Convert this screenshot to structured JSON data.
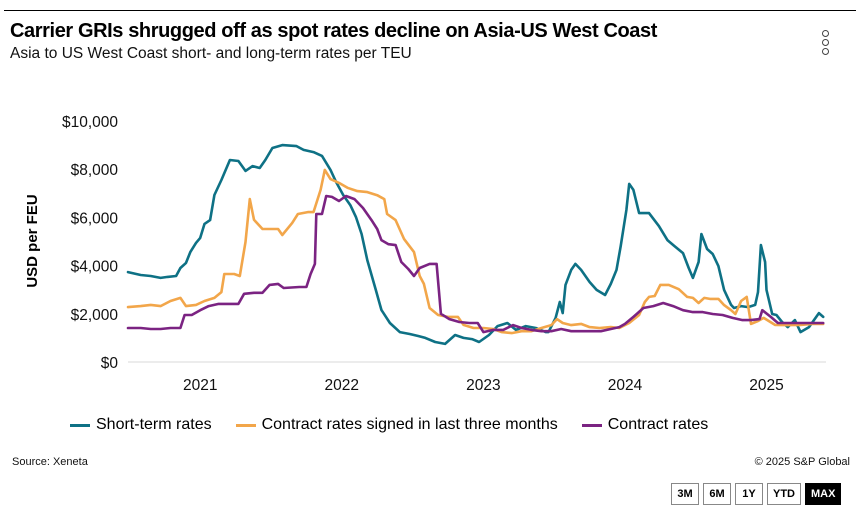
{
  "header": {
    "title": "Carrier GRIs shrugged off as spot rates decline on Asia-US West Coast",
    "subtitle": "Asia to US West Coast short- and long-term rates per TEU",
    "menu_icon": "vertical-ellipsis-icon"
  },
  "footer": {
    "source": "Source: Xeneta",
    "copyright": "© 2025 S&P Global",
    "range_buttons": [
      {
        "label": "3M",
        "active": false
      },
      {
        "label": "6M",
        "active": false
      },
      {
        "label": "1Y",
        "active": false
      },
      {
        "label": "YTD",
        "active": false
      },
      {
        "label": "MAX",
        "active": true
      }
    ]
  },
  "colors": {
    "short_term": "#0e7185",
    "contract_3m": "#f2a64a",
    "contract": "#7b2382",
    "grid": "#d9d9d9"
  },
  "chart_data": {
    "type": "line",
    "title": "Carrier GRIs shrugged off as spot rates decline on Asia-US West Coast",
    "subtitle": "Asia to US West Coast short- and long-term rates per TEU",
    "xlabel": "",
    "ylabel": "USD per FEU",
    "xlim": [
      2020.49,
      2025.42
    ],
    "ylim": [
      0,
      10000
    ],
    "x_ticks": [
      2021,
      2022,
      2023,
      2024,
      2025
    ],
    "x_tick_labels": [
      "2021",
      "2022",
      "2023",
      "2024",
      "2025"
    ],
    "y_ticks": [
      0,
      2000,
      4000,
      6000,
      8000,
      10000
    ],
    "y_tick_labels": [
      "$0",
      "$2,000",
      "$4,000",
      "$6,000",
      "$8,000",
      "$10,000"
    ],
    "grid": "baseline only",
    "legend_position": "bottom",
    "series": [
      {
        "name": "Short-term rates",
        "color_key": "short_term",
        "points": [
          [
            2020.49,
            3730
          ],
          [
            2020.58,
            3610
          ],
          [
            2020.65,
            3570
          ],
          [
            2020.72,
            3490
          ],
          [
            2020.77,
            3530
          ],
          [
            2020.83,
            3570
          ],
          [
            2020.86,
            3900
          ],
          [
            2020.9,
            4110
          ],
          [
            2020.93,
            4560
          ],
          [
            2020.97,
            4940
          ],
          [
            2021.0,
            5150
          ],
          [
            2021.03,
            5730
          ],
          [
            2021.07,
            5890
          ],
          [
            2021.1,
            6930
          ],
          [
            2021.15,
            7550
          ],
          [
            2021.21,
            8380
          ],
          [
            2021.27,
            8340
          ],
          [
            2021.32,
            7930
          ],
          [
            2021.37,
            8130
          ],
          [
            2021.42,
            8050
          ],
          [
            2021.46,
            8380
          ],
          [
            2021.51,
            8880
          ],
          [
            2021.58,
            9000
          ],
          [
            2021.68,
            8960
          ],
          [
            2021.73,
            8800
          ],
          [
            2021.8,
            8710
          ],
          [
            2021.86,
            8550
          ],
          [
            2021.92,
            7970
          ],
          [
            2021.96,
            7470
          ],
          [
            2022.01,
            6930
          ],
          [
            2022.06,
            6510
          ],
          [
            2022.1,
            6020
          ],
          [
            2022.14,
            5310
          ],
          [
            2022.18,
            4230
          ],
          [
            2022.24,
            2990
          ],
          [
            2022.28,
            2160
          ],
          [
            2022.34,
            1620
          ],
          [
            2022.41,
            1240
          ],
          [
            2022.48,
            1160
          ],
          [
            2022.54,
            1080
          ],
          [
            2022.59,
            1000
          ],
          [
            2022.66,
            830
          ],
          [
            2022.73,
            750
          ],
          [
            2022.8,
            1120
          ],
          [
            2022.86,
            1000
          ],
          [
            2022.92,
            950
          ],
          [
            2022.97,
            830
          ],
          [
            2023.04,
            1120
          ],
          [
            2023.1,
            1490
          ],
          [
            2023.17,
            1620
          ],
          [
            2023.23,
            1330
          ],
          [
            2023.3,
            1490
          ],
          [
            2023.37,
            1410
          ],
          [
            2023.44,
            1240
          ],
          [
            2023.46,
            1240
          ],
          [
            2023.51,
            1830
          ],
          [
            2023.54,
            2490
          ],
          [
            2023.56,
            2030
          ],
          [
            2023.58,
            3200
          ],
          [
            2023.62,
            3820
          ],
          [
            2023.65,
            4070
          ],
          [
            2023.69,
            3820
          ],
          [
            2023.75,
            3320
          ],
          [
            2023.8,
            2990
          ],
          [
            2023.86,
            2780
          ],
          [
            2023.9,
            3240
          ],
          [
            2023.94,
            3820
          ],
          [
            2023.97,
            4810
          ],
          [
            2024.01,
            6310
          ],
          [
            2024.03,
            7390
          ],
          [
            2024.06,
            7140
          ],
          [
            2024.1,
            6180
          ],
          [
            2024.17,
            6180
          ],
          [
            2024.24,
            5640
          ],
          [
            2024.3,
            5060
          ],
          [
            2024.35,
            4810
          ],
          [
            2024.41,
            4520
          ],
          [
            2024.45,
            3900
          ],
          [
            2024.48,
            3490
          ],
          [
            2024.52,
            4150
          ],
          [
            2024.54,
            5310
          ],
          [
            2024.58,
            4690
          ],
          [
            2024.62,
            4480
          ],
          [
            2024.66,
            3980
          ],
          [
            2024.7,
            2990
          ],
          [
            2024.75,
            2370
          ],
          [
            2024.77,
            2240
          ],
          [
            2024.82,
            2320
          ],
          [
            2024.87,
            2280
          ],
          [
            2024.92,
            2370
          ],
          [
            2024.94,
            2900
          ],
          [
            2024.96,
            4850
          ],
          [
            2024.99,
            4150
          ],
          [
            2025.0,
            2990
          ],
          [
            2025.04,
            1990
          ],
          [
            2025.07,
            1950
          ],
          [
            2025.11,
            1660
          ],
          [
            2025.15,
            1450
          ],
          [
            2025.2,
            1740
          ],
          [
            2025.24,
            1240
          ],
          [
            2025.3,
            1450
          ],
          [
            2025.37,
            2030
          ],
          [
            2025.4,
            1870
          ]
        ]
      },
      {
        "name": "Contract rates signed in last three months",
        "color_key": "contract_3m",
        "points": [
          [
            2020.49,
            2280
          ],
          [
            2020.58,
            2320
          ],
          [
            2020.65,
            2370
          ],
          [
            2020.72,
            2320
          ],
          [
            2020.79,
            2530
          ],
          [
            2020.86,
            2660
          ],
          [
            2020.9,
            2320
          ],
          [
            2020.97,
            2370
          ],
          [
            2021.03,
            2530
          ],
          [
            2021.1,
            2660
          ],
          [
            2021.15,
            2900
          ],
          [
            2021.17,
            3650
          ],
          [
            2021.24,
            3650
          ],
          [
            2021.28,
            3570
          ],
          [
            2021.32,
            4980
          ],
          [
            2021.35,
            6760
          ],
          [
            2021.38,
            5900
          ],
          [
            2021.44,
            5520
          ],
          [
            2021.51,
            5520
          ],
          [
            2021.55,
            5520
          ],
          [
            2021.58,
            5270
          ],
          [
            2021.65,
            5770
          ],
          [
            2021.69,
            6140
          ],
          [
            2021.76,
            6220
          ],
          [
            2021.8,
            6220
          ],
          [
            2021.85,
            7140
          ],
          [
            2021.88,
            7970
          ],
          [
            2021.92,
            7590
          ],
          [
            2021.98,
            7430
          ],
          [
            2022.04,
            7230
          ],
          [
            2022.11,
            7090
          ],
          [
            2022.18,
            7050
          ],
          [
            2022.25,
            6920
          ],
          [
            2022.3,
            6760
          ],
          [
            2022.32,
            6140
          ],
          [
            2022.38,
            5890
          ],
          [
            2022.44,
            5100
          ],
          [
            2022.51,
            4560
          ],
          [
            2022.55,
            3570
          ],
          [
            2022.58,
            3240
          ],
          [
            2022.62,
            2240
          ],
          [
            2022.68,
            1950
          ],
          [
            2022.75,
            1870
          ],
          [
            2022.82,
            1870
          ],
          [
            2022.86,
            1540
          ],
          [
            2022.93,
            1410
          ],
          [
            2023.0,
            1410
          ],
          [
            2023.07,
            1370
          ],
          [
            2023.13,
            1240
          ],
          [
            2023.2,
            1200
          ],
          [
            2023.27,
            1280
          ],
          [
            2023.34,
            1280
          ],
          [
            2023.41,
            1410
          ],
          [
            2023.48,
            1530
          ],
          [
            2023.52,
            1780
          ],
          [
            2023.56,
            1620
          ],
          [
            2023.62,
            1530
          ],
          [
            2023.69,
            1580
          ],
          [
            2023.75,
            1450
          ],
          [
            2023.82,
            1410
          ],
          [
            2023.9,
            1450
          ],
          [
            2023.96,
            1410
          ],
          [
            2024.03,
            1620
          ],
          [
            2024.1,
            1950
          ],
          [
            2024.14,
            2490
          ],
          [
            2024.17,
            2700
          ],
          [
            2024.21,
            2740
          ],
          [
            2024.25,
            3200
          ],
          [
            2024.31,
            3200
          ],
          [
            2024.38,
            3020
          ],
          [
            2024.44,
            2700
          ],
          [
            2024.48,
            2660
          ],
          [
            2024.52,
            2450
          ],
          [
            2024.56,
            2660
          ],
          [
            2024.6,
            2620
          ],
          [
            2024.66,
            2620
          ],
          [
            2024.7,
            2360
          ],
          [
            2024.75,
            2150
          ],
          [
            2024.78,
            1990
          ],
          [
            2024.82,
            2530
          ],
          [
            2024.86,
            2700
          ],
          [
            2024.89,
            1580
          ],
          [
            2024.94,
            1700
          ],
          [
            2024.98,
            1830
          ],
          [
            2025.06,
            1540
          ],
          [
            2025.14,
            1530
          ],
          [
            2025.24,
            1540
          ],
          [
            2025.32,
            1580
          ],
          [
            2025.4,
            1580
          ]
        ]
      },
      {
        "name": "Contract rates",
        "color_key": "contract",
        "points": [
          [
            2020.49,
            1410
          ],
          [
            2020.58,
            1410
          ],
          [
            2020.65,
            1370
          ],
          [
            2020.72,
            1370
          ],
          [
            2020.79,
            1410
          ],
          [
            2020.86,
            1410
          ],
          [
            2020.89,
            1950
          ],
          [
            2020.94,
            1950
          ],
          [
            2021.0,
            2150
          ],
          [
            2021.06,
            2320
          ],
          [
            2021.13,
            2410
          ],
          [
            2021.2,
            2410
          ],
          [
            2021.27,
            2410
          ],
          [
            2021.31,
            2830
          ],
          [
            2021.38,
            2870
          ],
          [
            2021.44,
            2870
          ],
          [
            2021.49,
            3200
          ],
          [
            2021.55,
            3240
          ],
          [
            2021.59,
            3070
          ],
          [
            2021.7,
            3110
          ],
          [
            2021.75,
            3110
          ],
          [
            2021.78,
            3650
          ],
          [
            2021.81,
            4070
          ],
          [
            2021.82,
            6140
          ],
          [
            2021.86,
            6140
          ],
          [
            2021.89,
            6890
          ],
          [
            2021.93,
            6850
          ],
          [
            2021.98,
            6680
          ],
          [
            2022.03,
            6890
          ],
          [
            2022.09,
            6760
          ],
          [
            2022.15,
            6390
          ],
          [
            2022.21,
            5890
          ],
          [
            2022.25,
            5520
          ],
          [
            2022.28,
            5060
          ],
          [
            2022.33,
            4890
          ],
          [
            2022.38,
            4850
          ],
          [
            2022.42,
            4150
          ],
          [
            2022.47,
            3860
          ],
          [
            2022.51,
            3570
          ],
          [
            2022.55,
            3900
          ],
          [
            2022.62,
            4070
          ],
          [
            2022.67,
            4070
          ],
          [
            2022.7,
            2000
          ],
          [
            2022.76,
            1780
          ],
          [
            2022.83,
            1660
          ],
          [
            2022.9,
            1620
          ],
          [
            2022.96,
            1620
          ],
          [
            2023.0,
            1240
          ],
          [
            2023.07,
            1330
          ],
          [
            2023.14,
            1330
          ],
          [
            2023.21,
            1530
          ],
          [
            2023.27,
            1410
          ],
          [
            2023.34,
            1330
          ],
          [
            2023.41,
            1280
          ],
          [
            2023.48,
            1280
          ],
          [
            2023.55,
            1370
          ],
          [
            2023.62,
            1280
          ],
          [
            2023.69,
            1280
          ],
          [
            2023.76,
            1280
          ],
          [
            2023.83,
            1280
          ],
          [
            2023.9,
            1370
          ],
          [
            2023.96,
            1450
          ],
          [
            2024.0,
            1580
          ],
          [
            2024.06,
            1870
          ],
          [
            2024.13,
            2240
          ],
          [
            2024.2,
            2320
          ],
          [
            2024.27,
            2450
          ],
          [
            2024.34,
            2320
          ],
          [
            2024.41,
            2150
          ],
          [
            2024.48,
            2070
          ],
          [
            2024.55,
            2070
          ],
          [
            2024.62,
            1990
          ],
          [
            2024.69,
            1950
          ],
          [
            2024.76,
            1830
          ],
          [
            2024.83,
            1740
          ],
          [
            2024.89,
            1740
          ],
          [
            2024.95,
            1780
          ],
          [
            2024.97,
            2150
          ],
          [
            2025.03,
            1870
          ],
          [
            2025.08,
            1620
          ],
          [
            2025.17,
            1620
          ],
          [
            2025.27,
            1620
          ],
          [
            2025.4,
            1620
          ]
        ]
      }
    ]
  }
}
